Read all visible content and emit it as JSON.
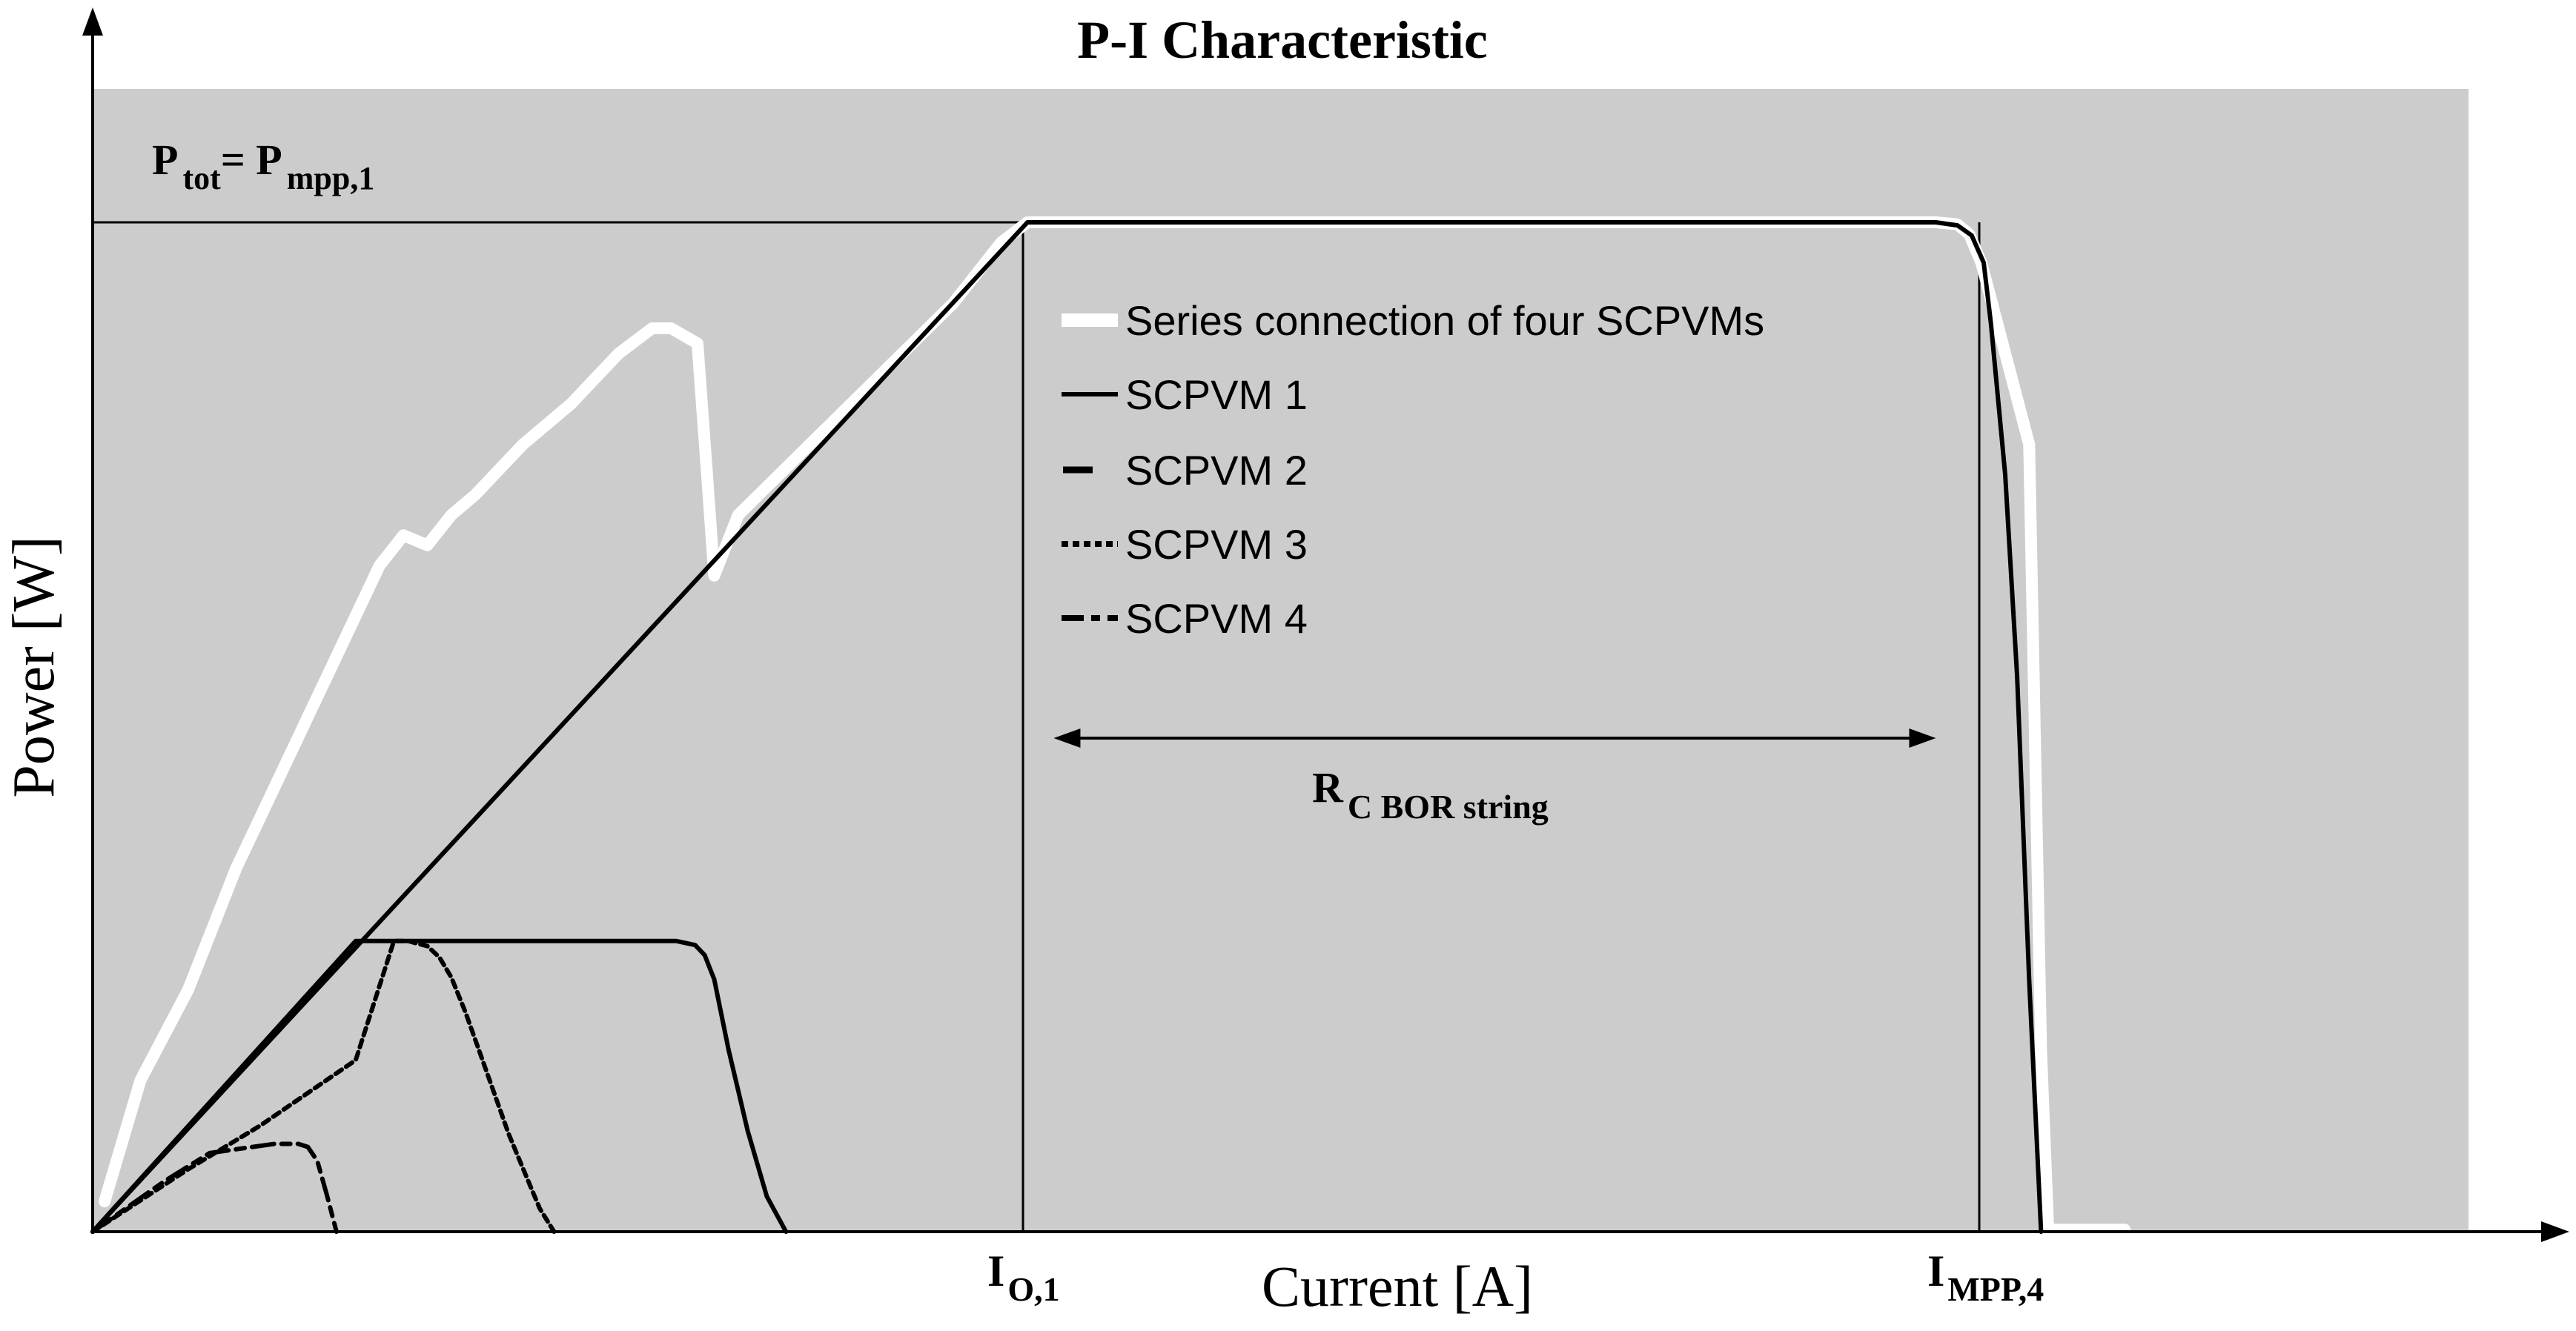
{
  "chart_data": {
    "type": "line",
    "title": "P-I Characteristic",
    "xlabel": "Current [A]",
    "ylabel": "Power [W]",
    "xlim": [
      0,
      100
    ],
    "ylim": [
      0,
      100
    ],
    "grid": false,
    "legend_position": "center",
    "background_color": "#cccccc",
    "annotations": {
      "ptot_label": {
        "P1": "P",
        "sub1": "tot",
        "eq": "= P",
        "sub2": "mpp,1"
      },
      "range_label": {
        "main": "R",
        "sub": "C BOR string"
      },
      "x_ticks": [
        {
          "main": "I",
          "sub": "O,1",
          "x": 39.1
        },
        {
          "main": "I",
          "sub": "MPP,4",
          "x": 79.1
        }
      ],
      "ptot_level": 100,
      "range_arrow": {
        "x_start": 40.2,
        "x_end": 77.1,
        "y": 48.9
      }
    },
    "series": [
      {
        "name": "Series connection of four SCPVMs",
        "style": "thick-white",
        "color": "#ffffff",
        "x": [
          0.5,
          2,
          4,
          6,
          8,
          10,
          12,
          13,
          14,
          15,
          16,
          18,
          20,
          22,
          23.4,
          24.2,
          25.3,
          25.7,
          26,
          27,
          30,
          33,
          36,
          37,
          38,
          39.1,
          40,
          60,
          77.1,
          78,
          78.5,
          79,
          81,
          81.5,
          81.8,
          85
        ],
        "y": [
          3,
          15,
          24,
          36,
          46,
          56,
          66,
          69,
          68,
          71,
          73,
          78,
          82,
          87,
          89.5,
          89.5,
          88,
          75,
          65,
          71,
          78,
          85,
          92,
          95,
          98,
          100,
          100,
          100,
          100,
          99.8,
          98.8,
          96,
          78,
          18,
          0.2,
          0.2
        ]
      },
      {
        "name": "SCPVM 1",
        "style": "solid",
        "color": "#000000",
        "x": [
          0,
          39.1,
          77.1,
          78,
          78.6,
          79.1,
          79.4,
          80,
          80.5,
          81,
          81.5
        ],
        "y": [
          0,
          100,
          100,
          99.7,
          98.7,
          96,
          90,
          75,
          55,
          25,
          0
        ]
      },
      {
        "name": "SCPVM 2",
        "style": "dash-long",
        "color": "#000000",
        "x": [
          0,
          11,
          24.4,
          25.2,
          25.6,
          26,
          26.6,
          27,
          27.4,
          28.2,
          29
        ],
        "y": [
          0,
          28.8,
          28.8,
          28.4,
          27.4,
          25,
          18,
          14,
          10,
          3.5,
          0
        ]
      },
      {
        "name": "SCPVM 3",
        "style": "dotted",
        "color": "#000000",
        "x": [
          0,
          4,
          7,
          11,
          12.6,
          13.2,
          13.5,
          14,
          14.5,
          15,
          15.6,
          16.2,
          16.8,
          17.4,
          18.1,
          18.7,
          19.3
        ],
        "y": [
          0,
          6.2,
          10.5,
          17,
          28.8,
          28.8,
          28.6,
          28.3,
          27.2,
          25.2,
          21.7,
          17.7,
          13.7,
          9.7,
          5.7,
          2.3,
          0
        ]
      },
      {
        "name": "SCPVM 4",
        "style": "dash-dot",
        "color": "#000000",
        "x": [
          0,
          3,
          4.9,
          7.6,
          8.6,
          9,
          9.4,
          9.8,
          10.2
        ],
        "y": [
          0,
          5,
          7.8,
          8.7,
          8.7,
          8.4,
          7,
          3.6,
          0
        ]
      }
    ]
  }
}
